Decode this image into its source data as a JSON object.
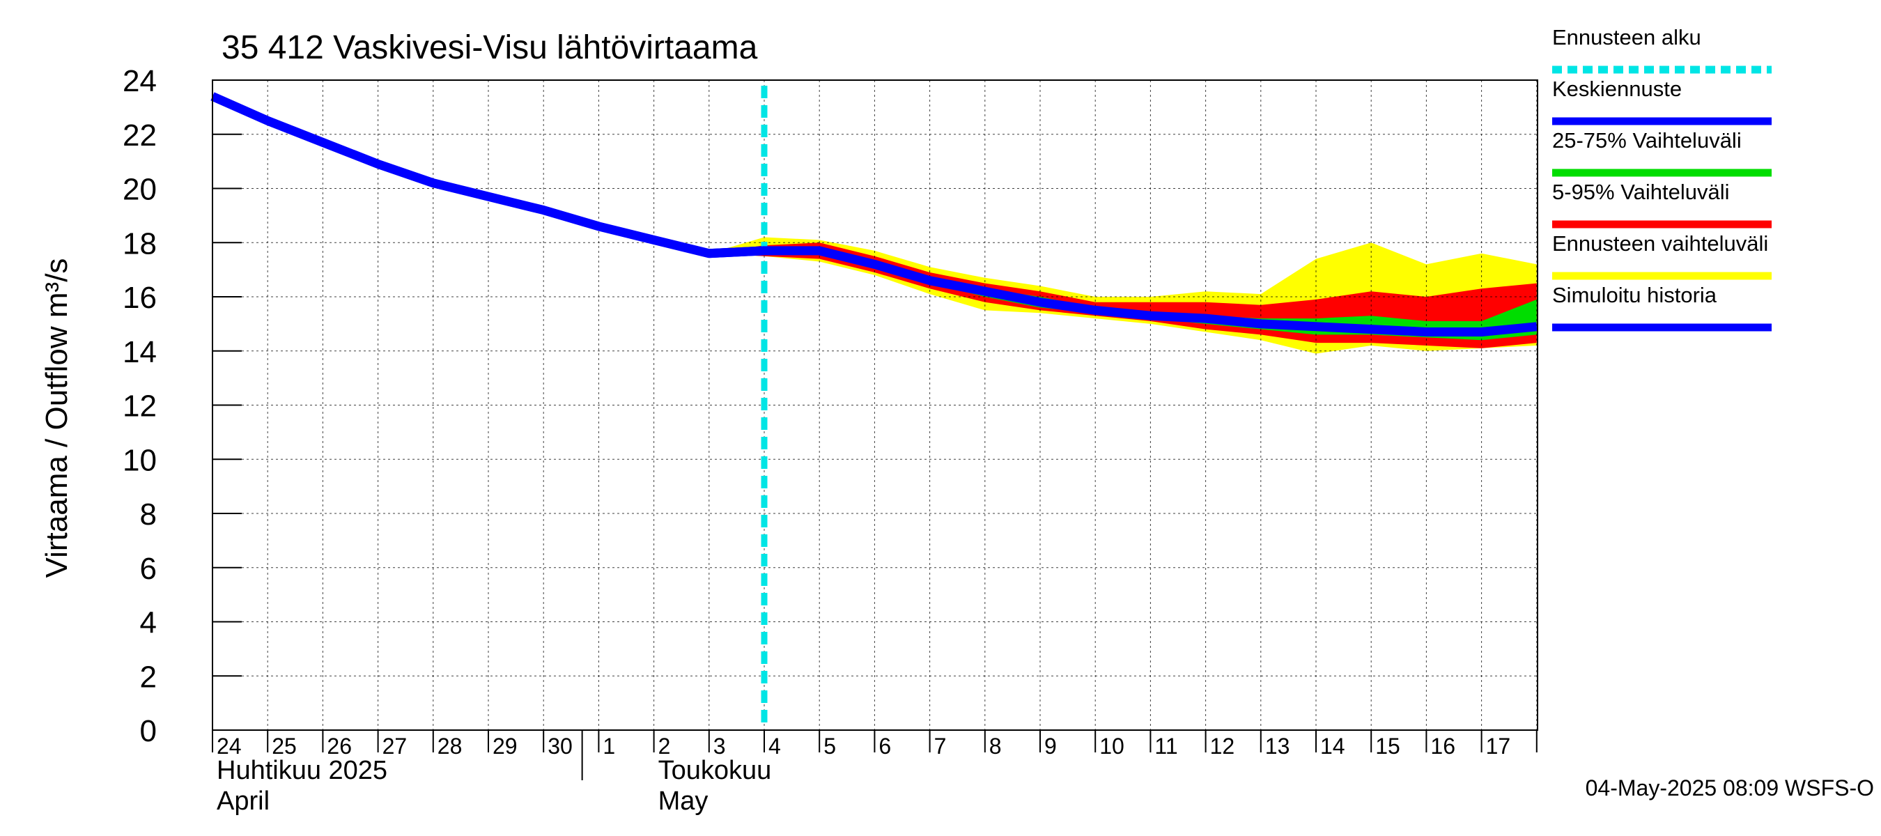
{
  "chart_data": {
    "type": "area",
    "title": "35 412 Vaskivesi-Visu lähtövirtaama",
    "ylabel": "Virtaama / Outflow     m³/s",
    "ylim": [
      0,
      24
    ],
    "yticks": [
      "0",
      "2",
      "4",
      "6",
      "8",
      "10",
      "12",
      "14",
      "16",
      "18",
      "20",
      "22",
      "24"
    ],
    "grid": true,
    "legend_position": "right",
    "x_dates": [
      "2025-04-24",
      "2025-04-25",
      "2025-04-26",
      "2025-04-27",
      "2025-04-28",
      "2025-04-29",
      "2025-04-30",
      "2025-05-01",
      "2025-05-02",
      "2025-05-03",
      "2025-05-04",
      "2025-05-05",
      "2025-05-06",
      "2025-05-07",
      "2025-05-08",
      "2025-05-09",
      "2025-05-10",
      "2025-05-11",
      "2025-05-12",
      "2025-05-13",
      "2025-05-14",
      "2025-05-15",
      "2025-05-16",
      "2025-05-17",
      "2025-05-18"
    ],
    "x_tick_labels": [
      "24",
      "25",
      "26",
      "27",
      "28",
      "29",
      "30",
      "1",
      "2",
      "3",
      "4",
      "5",
      "6",
      "7",
      "8",
      "9",
      "10",
      "11",
      "12",
      "13",
      "14",
      "15",
      "16",
      "17"
    ],
    "months": [
      {
        "line1": "Huhtikuu  2025",
        "line2": "April"
      },
      {
        "line1": "Toukokuu",
        "line2": "May"
      }
    ],
    "forecast_start": "2025-05-04",
    "legend": [
      {
        "label": "Ennusteen alku",
        "color": "#00e5e5",
        "style": "dashed"
      },
      {
        "label": "Keskiennuste",
        "color": "#0000ff",
        "style": "solid"
      },
      {
        "label": "25-75% Vaihteluväli",
        "color": "#00dd00",
        "style": "solid"
      },
      {
        "label": "5-95% Vaihteluväli",
        "color": "#ff0000",
        "style": "solid"
      },
      {
        "label": "Ennusteen vaihteluväli",
        "color": "#ffff00",
        "style": "solid"
      },
      {
        "label": "Simuloitu historia",
        "color": "#0000ff",
        "style": "solid"
      }
    ],
    "history": {
      "x": [
        "2025-04-24",
        "2025-04-25",
        "2025-04-26",
        "2025-04-27",
        "2025-04-28",
        "2025-04-29",
        "2025-04-30",
        "2025-05-01",
        "2025-05-02",
        "2025-05-03",
        "2025-05-04"
      ],
      "y": [
        23.4,
        22.5,
        21.7,
        20.9,
        20.2,
        19.7,
        19.2,
        18.6,
        18.1,
        17.6,
        17.7
      ]
    },
    "forecast": {
      "x": [
        "2025-05-03",
        "2025-05-04",
        "2025-05-05",
        "2025-05-06",
        "2025-05-07",
        "2025-05-08",
        "2025-05-09",
        "2025-05-10",
        "2025-05-11",
        "2025-05-12",
        "2025-05-13",
        "2025-05-14",
        "2025-05-15",
        "2025-05-16",
        "2025-05-17",
        "2025-05-18"
      ],
      "median": [
        17.6,
        17.7,
        17.7,
        17.2,
        16.6,
        16.2,
        15.8,
        15.5,
        15.3,
        15.2,
        15.0,
        14.9,
        14.8,
        14.7,
        14.7,
        14.9
      ],
      "p25": [
        17.6,
        17.6,
        17.6,
        17.1,
        16.5,
        16.0,
        15.6,
        15.4,
        15.2,
        15.0,
        14.8,
        14.6,
        14.6,
        14.5,
        14.4,
        14.6
      ],
      "p75": [
        17.6,
        17.8,
        17.8,
        17.3,
        16.7,
        16.3,
        16.0,
        15.6,
        15.4,
        15.3,
        15.2,
        15.2,
        15.3,
        15.1,
        15.1,
        15.9
      ],
      "p5": [
        17.6,
        17.5,
        17.4,
        16.9,
        16.3,
        15.8,
        15.5,
        15.3,
        15.1,
        14.8,
        14.6,
        14.3,
        14.3,
        14.2,
        14.1,
        14.3
      ],
      "p95": [
        17.6,
        17.9,
        18.0,
        17.5,
        16.9,
        16.5,
        16.2,
        15.8,
        15.8,
        15.8,
        15.7,
        15.9,
        16.2,
        16.0,
        16.3,
        16.5
      ],
      "min": [
        17.6,
        17.5,
        17.3,
        16.8,
        16.1,
        15.5,
        15.4,
        15.2,
        15.0,
        14.7,
        14.4,
        13.9,
        14.2,
        14.0,
        14.1,
        14.2
      ],
      "max": [
        17.6,
        18.2,
        18.1,
        17.7,
        17.1,
        16.7,
        16.4,
        16.0,
        16.0,
        16.2,
        16.1,
        17.4,
        18.0,
        17.2,
        17.6,
        17.2
      ]
    }
  },
  "footer": "04-May-2025 08:09 WSFS-O"
}
